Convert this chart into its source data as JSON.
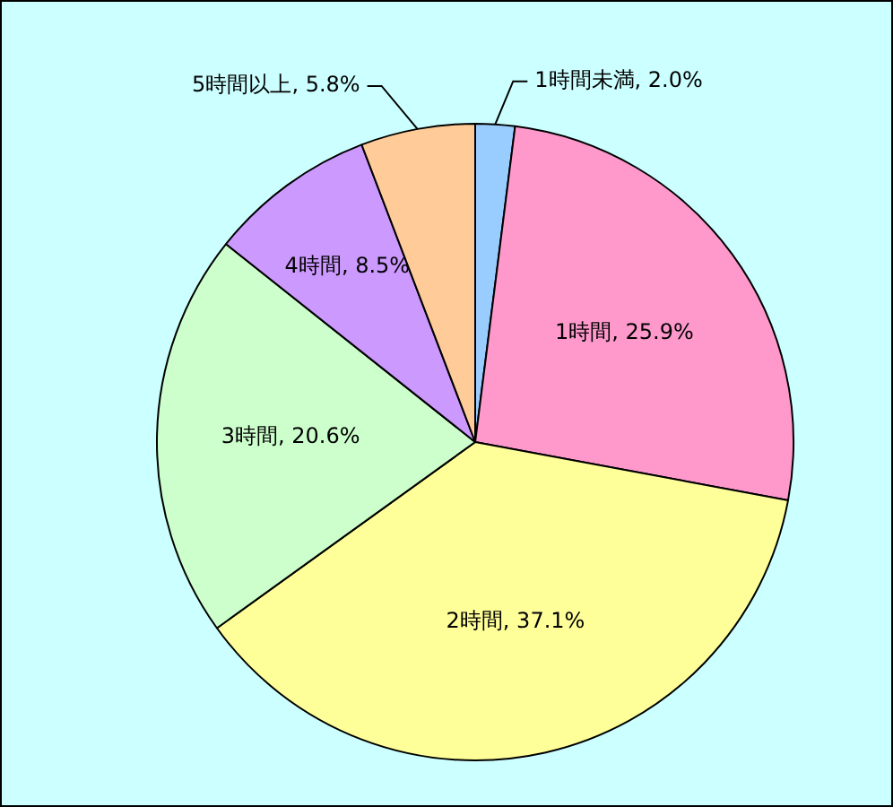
{
  "chart_data": {
    "type": "pie",
    "categories": [
      "1時間未満",
      "1時間",
      "2時間",
      "3時間",
      "4時間",
      "5時間以上"
    ],
    "values": [
      2.0,
      25.9,
      37.1,
      20.6,
      8.5,
      5.8
    ],
    "value_labels": [
      "2.0%",
      "25.9%",
      "37.1%",
      "20.6%",
      "8.5%",
      "5.8%"
    ],
    "colors": [
      "#99ccff",
      "#ff99cc",
      "#ffff99",
      "#ccffcc",
      "#cc99ff",
      "#ffcc99"
    ],
    "legend": false
  }
}
